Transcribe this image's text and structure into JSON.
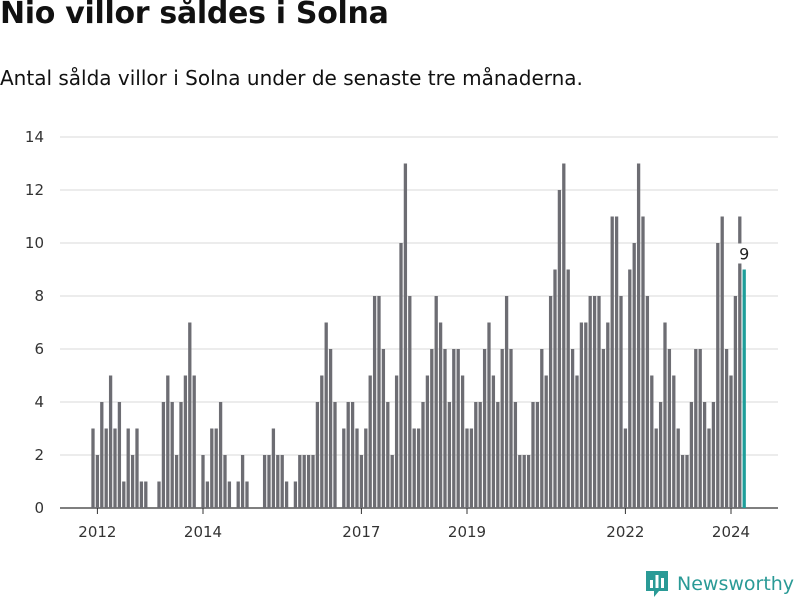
{
  "title": "Nio villor såldes i Solna",
  "subtitle": "Antal sålda villor i Solna under de senaste tre månaderna.",
  "brand": {
    "name": "Newsworthy",
    "logo_icon": "bar-chart-logo-icon"
  },
  "colors": {
    "bar": "#6d6d73",
    "highlight": "#1e9e9a",
    "grid": "#d9d9d9",
    "axis": "#333333",
    "brand": "#2a9a96"
  },
  "chart_data": {
    "type": "bar",
    "title": "Nio villor såldes i Solna",
    "subtitle": "Antal sålda villor i Solna under de senaste tre månaderna.",
    "xlabel": "",
    "ylabel": "",
    "ylim": [
      0,
      14
    ],
    "y_ticks": [
      0,
      2,
      4,
      6,
      8,
      10,
      12,
      14
    ],
    "x_tick_labels": [
      "2012",
      "2014",
      "2017",
      "2019",
      "2022",
      "2024"
    ],
    "grid": true,
    "start": "2011-12",
    "frequency": "monthly",
    "values": [
      3,
      2,
      4,
      3,
      5,
      3,
      4,
      1,
      3,
      2,
      3,
      1,
      1,
      0,
      0,
      1,
      4,
      5,
      4,
      2,
      4,
      5,
      7,
      5,
      0,
      2,
      1,
      3,
      3,
      4,
      2,
      1,
      0,
      1,
      2,
      1,
      0,
      0,
      0,
      2,
      2,
      3,
      2,
      2,
      1,
      0,
      1,
      2,
      2,
      2,
      2,
      4,
      5,
      7,
      6,
      4,
      0,
      3,
      4,
      4,
      3,
      2,
      3,
      5,
      8,
      8,
      6,
      4,
      2,
      5,
      10,
      13,
      8,
      3,
      3,
      4,
      5,
      6,
      8,
      7,
      6,
      4,
      6,
      6,
      5,
      3,
      3,
      4,
      4,
      6,
      7,
      5,
      4,
      6,
      8,
      6,
      4,
      2,
      2,
      2,
      4,
      4,
      6,
      5,
      8,
      9,
      12,
      13,
      9,
      6,
      5,
      7,
      7,
      8,
      8,
      8,
      6,
      7,
      11,
      11,
      8,
      3,
      9,
      10,
      13,
      11,
      8,
      5,
      3,
      4,
      7,
      6,
      5,
      3,
      2,
      2,
      4,
      6,
      6,
      4,
      3,
      4,
      10,
      11,
      6,
      5,
      8,
      11,
      9
    ],
    "highlight_last": true,
    "annotation": {
      "label": "9"
    }
  }
}
